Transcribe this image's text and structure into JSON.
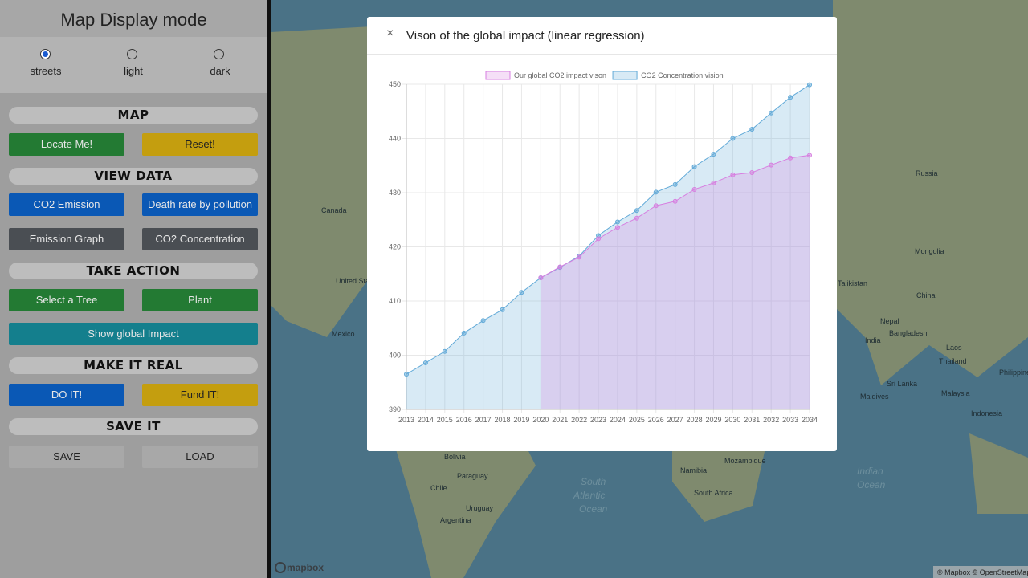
{
  "sidebar": {
    "title": "Map Display mode",
    "styles": [
      "streets",
      "light",
      "dark"
    ],
    "sections": [
      {
        "heading": "MAP",
        "buttons": [
          "Locate Me!",
          "Reset!"
        ]
      },
      {
        "heading": "VIEW DATA",
        "buttons": [
          "CO2 Emission",
          "Death rate by pollution",
          "Emission Graph",
          "CO2 Concentration"
        ]
      },
      {
        "heading": "TAKE ACTION",
        "buttons": [
          "Select a Tree",
          "Plant",
          "Show global Impact"
        ]
      },
      {
        "heading": "MAKE IT REAL",
        "buttons": [
          "DO IT!",
          "Fund IT!"
        ]
      },
      {
        "heading": "SAVE IT",
        "buttons": [
          "SAVE",
          "LOAD"
        ]
      }
    ]
  },
  "map": {
    "labels": [
      "Canada",
      "United States",
      "Mexico",
      "Bolivia",
      "Paraguay",
      "Chile",
      "Uruguay",
      "Argentina",
      "South",
      "Atlantic",
      "Ocean",
      "Namibia",
      "Mozambique",
      "South Africa",
      "Indian",
      "Ocean",
      "Russia",
      "Mongolia",
      "China",
      "Tajikistan",
      "Nepal",
      "Bangladesh",
      "India",
      "Laos",
      "Thailand",
      "Philippines",
      "Sri Lanka",
      "Maldives",
      "Malaysia",
      "Indonesia"
    ],
    "attribution": "© Mapbox © OpenStreetMap",
    "logo": "mapbox"
  },
  "modal": {
    "close": "×",
    "title": "Vison of the global impact (linear regression)"
  },
  "chart_data": {
    "type": "line",
    "categories": [
      "2013",
      "2014",
      "2015",
      "2016",
      "2017",
      "2018",
      "2019",
      "2020",
      "2021",
      "2022",
      "2023",
      "2024",
      "2025",
      "2026",
      "2027",
      "2028",
      "2029",
      "2030",
      "2031",
      "2032",
      "2033",
      "2034"
    ],
    "series": [
      {
        "name": "Our global CO2 impact vison",
        "color": "#d77fe0",
        "values": [
          null,
          null,
          null,
          null,
          null,
          null,
          null,
          414.3,
          416.3,
          418.1,
          421.5,
          423.6,
          425.3,
          427.6,
          428.4,
          430.6,
          431.8,
          433.3,
          433.7,
          435.1,
          436.4,
          436.9
        ]
      },
      {
        "name": "CO2 Concentration vision",
        "color": "#62aad8",
        "values": [
          396.5,
          398.6,
          400.7,
          404.1,
          406.4,
          408.4,
          411.6,
          414.3,
          416.2,
          418.3,
          422.1,
          424.6,
          426.7,
          430.1,
          431.5,
          434.8,
          437.1,
          440.0,
          441.7,
          444.7,
          447.6,
          449.9
        ]
      }
    ],
    "ylim": [
      390,
      450
    ],
    "yticks": [
      390,
      400,
      410,
      420,
      430,
      440,
      450
    ],
    "grid": true,
    "legend": "top"
  }
}
